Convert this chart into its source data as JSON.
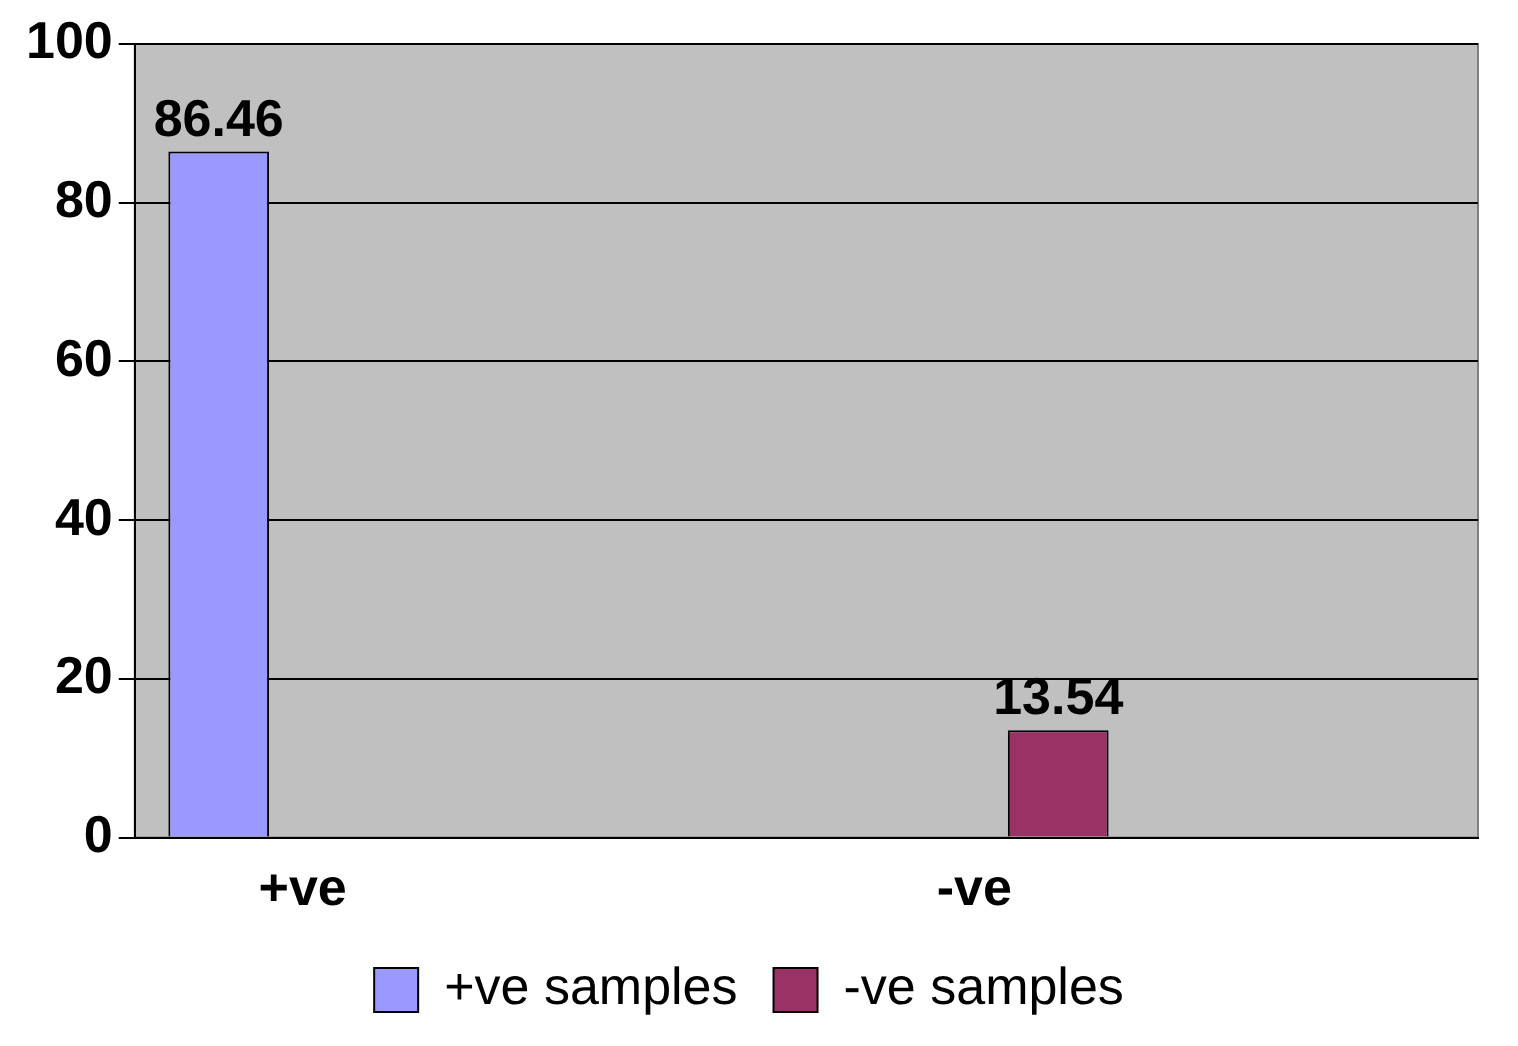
{
  "chart_data": {
    "type": "bar",
    "categories": [
      "+ve",
      null,
      "-ve",
      null
    ],
    "series": [
      {
        "name": "+ve samples",
        "color": "#9999ff",
        "values": [
          86.46,
          null,
          null,
          null
        ]
      },
      {
        "name": "-ve samples",
        "color": "#993366",
        "values": [
          null,
          null,
          13.54,
          null
        ]
      }
    ],
    "ylim": [
      0,
      100
    ],
    "yticks": [
      0,
      20,
      40,
      60,
      80,
      100
    ],
    "grid": "y",
    "legend": "bottom",
    "data_labels": true
  }
}
